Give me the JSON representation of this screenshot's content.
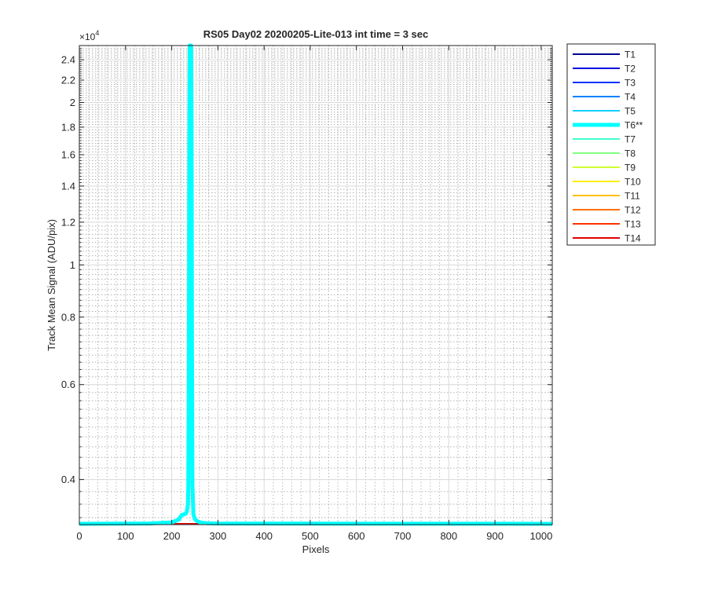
{
  "chart_data": {
    "type": "line",
    "title": "RS05 Day02 20200205-Lite-013 int time = 3 sec",
    "xlabel": "Pixels",
    "ylabel": "Track Mean Signal (ADU/pix)",
    "y_exponent_label": "×10",
    "y_exponent_power": "4",
    "xlim": [
      0,
      1024
    ],
    "ylim": [
      3300,
      25500
    ],
    "y_scale": "log",
    "grid": true,
    "minor_grid": true,
    "legend_position": "outside-right",
    "x_ticks": [
      0,
      100,
      200,
      300,
      400,
      500,
      600,
      700,
      800,
      900,
      1000
    ],
    "x_tick_labels": [
      "0",
      "100",
      "200",
      "300",
      "400",
      "500",
      "600",
      "700",
      "800",
      "900",
      "1000"
    ],
    "y_ticks": [
      4000,
      6000,
      8000,
      10000,
      12000,
      14000,
      16000,
      18000,
      20000,
      22000,
      24000
    ],
    "y_tick_labels": [
      "0.4",
      "0.6",
      "0.8",
      "1",
      "1.2",
      "1.4",
      "1.6",
      "1.8",
      "2",
      "2.2",
      "2.4"
    ],
    "y_minor_ticks": [
      3400,
      3600,
      3800,
      4200,
      4400,
      4600,
      4800,
      5000,
      5200,
      5400,
      5600,
      5800,
      6200,
      6400,
      6600,
      6800,
      7000,
      7200,
      7400,
      7600,
      7800,
      8200,
      8400,
      8600,
      8800,
      9000,
      9200,
      9400,
      9600,
      9800,
      10200,
      10400,
      10600,
      10800,
      11000,
      11200,
      11400,
      11600,
      11800,
      12200,
      12400,
      12600,
      12800,
      13000,
      13200,
      13400,
      13600,
      13800,
      14200,
      14400,
      14600,
      14800,
      15000,
      15200,
      15400,
      15600,
      15800,
      16200,
      16400,
      16600,
      16800,
      17000,
      17200,
      17400,
      17600,
      17800,
      18200,
      18400,
      18600,
      18800,
      19000,
      19200,
      19400,
      19600,
      19800,
      20200,
      20400,
      20600,
      20800,
      21000,
      21200,
      21400,
      21600,
      21800,
      22200,
      22400,
      22600,
      22800,
      23000,
      23200,
      23400,
      23600,
      23800,
      24200,
      24400,
      24600,
      24800,
      25000,
      25200
    ],
    "series": [
      {
        "name": "T1",
        "color": "#00008f",
        "line_width": 2,
        "x": [
          0,
          1024
        ],
        "y": [
          3310,
          3310
        ]
      },
      {
        "name": "T2",
        "color": "#0000df",
        "line_width": 2,
        "x": [
          0,
          1024
        ],
        "y": [
          3310,
          3310
        ]
      },
      {
        "name": "T3",
        "color": "#0030ff",
        "line_width": 2,
        "x": [
          0,
          1024
        ],
        "y": [
          3310,
          3310
        ]
      },
      {
        "name": "T4",
        "color": "#0080ff",
        "line_width": 2,
        "x": [
          0,
          1024
        ],
        "y": [
          3310,
          3310
        ]
      },
      {
        "name": "T5",
        "color": "#10cfff",
        "line_width": 2,
        "x": [
          0,
          1024
        ],
        "y": [
          3310,
          3310
        ]
      },
      {
        "name": "T6**",
        "color": "#00ffff",
        "line_width": 5,
        "x": [
          0,
          150,
          200,
          215,
          222,
          228,
          231,
          233,
          235,
          236,
          237,
          238,
          239,
          240,
          241,
          242,
          243,
          244,
          245,
          247,
          250,
          255,
          262,
          275,
          300,
          1024
        ],
        "y": [
          3310,
          3315,
          3330,
          3370,
          3440,
          3450,
          3460,
          3500,
          3600,
          3900,
          6000,
          16000,
          25500,
          25500,
          25500,
          25500,
          18000,
          7000,
          3900,
          3450,
          3380,
          3350,
          3330,
          3320,
          3315,
          3310
        ]
      },
      {
        "name": "T7",
        "color": "#40ffcf",
        "line_width": 2,
        "x": [
          0,
          1024
        ],
        "y": [
          3310,
          3310
        ]
      },
      {
        "name": "T8",
        "color": "#80ff80",
        "line_width": 2,
        "x": [
          0,
          1024
        ],
        "y": [
          3310,
          3310
        ]
      },
      {
        "name": "T9",
        "color": "#cfff30",
        "line_width": 2,
        "x": [
          0,
          1024
        ],
        "y": [
          3310,
          3310
        ]
      },
      {
        "name": "T10",
        "color": "#ffef00",
        "line_width": 2,
        "x": [
          0,
          1024
        ],
        "y": [
          3310,
          3310
        ]
      },
      {
        "name": "T11",
        "color": "#ffbf00",
        "line_width": 2,
        "x": [
          0,
          1024
        ],
        "y": [
          3310,
          3310
        ]
      },
      {
        "name": "T12",
        "color": "#ff7000",
        "line_width": 2,
        "x": [
          0,
          1024
        ],
        "y": [
          3310,
          3310
        ]
      },
      {
        "name": "T13",
        "color": "#ff3000",
        "line_width": 2,
        "x": [
          0,
          1024
        ],
        "y": [
          3310,
          3310
        ]
      },
      {
        "name": "T14",
        "color": "#e00000",
        "line_width": 2,
        "x": [
          0,
          1024
        ],
        "y": [
          3310,
          3310
        ]
      }
    ]
  }
}
